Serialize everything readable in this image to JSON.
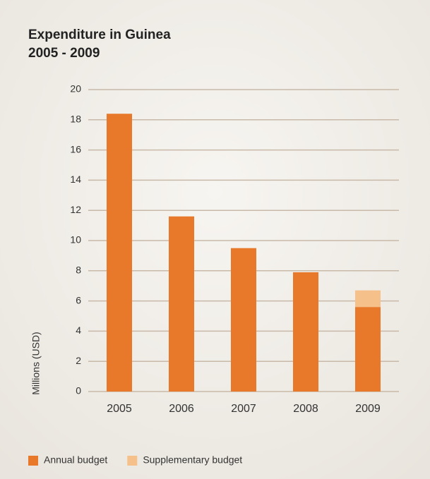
{
  "chart_data": {
    "type": "stacked_bar",
    "title": "Expenditure in Guinea",
    "subtitle": "2005 - 2009",
    "y_label": "Millions (USD)",
    "categories": [
      "2005",
      "2006",
      "2007",
      "2008",
      "2009"
    ],
    "series": [
      {
        "name": "Annual budget",
        "color": "#e8792a",
        "values": [
          18.4,
          11.6,
          9.5,
          7.9,
          5.6
        ]
      },
      {
        "name": "Supplementary budget",
        "color": "#f5c089",
        "values": [
          0,
          0,
          0,
          0,
          1.1
        ]
      }
    ],
    "ylim": [
      0,
      20
    ],
    "yticks": [
      0,
      2,
      4,
      6,
      8,
      10,
      12,
      14,
      16,
      18,
      20
    ],
    "grid": true,
    "legend": "bottom"
  }
}
